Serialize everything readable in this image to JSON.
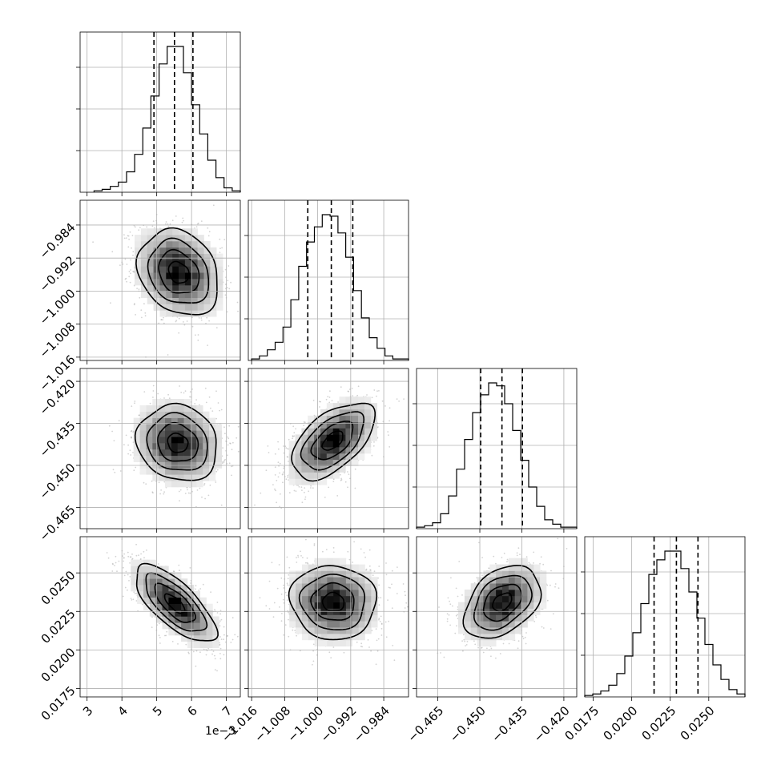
{
  "chart_data": {
    "type": "corner",
    "grid": true,
    "parameters": [
      {
        "index": 0,
        "axis_range": [
          0.0028,
          0.0074
        ],
        "ticks": [
          3,
          4,
          5,
          6,
          7
        ],
        "tick_scale": 0.001,
        "offset_label": "1e−3",
        "quantiles": [
          0.00492,
          0.00551,
          0.00604
        ],
        "hist_counts": [
          1,
          2,
          4,
          7,
          14,
          26,
          44,
          66,
          88,
          100,
          100,
          82,
          60,
          40,
          22,
          10,
          3,
          1
        ],
        "hist_range": [
          0.0032,
          0.0074
        ]
      },
      {
        "index": 1,
        "axis_range": [
          -1.0168,
          -0.978
        ],
        "ticks": [
          -1.016,
          -1.008,
          -1.0,
          -0.992,
          -0.984
        ],
        "tick_scale": 1,
        "quantiles": [
          -1.0024,
          -0.9967,
          -0.9915
        ],
        "hist_counts": [
          1,
          3,
          7,
          12,
          22,
          40,
          62,
          78,
          88,
          96,
          95,
          84,
          68,
          46,
          28,
          15,
          8,
          3,
          1,
          1
        ],
        "hist_range": [
          -1.016,
          -0.978
        ]
      },
      {
        "index": 2,
        "axis_range": [
          -0.4726,
          -0.4154
        ],
        "ticks": [
          -0.465,
          -0.45,
          -0.435,
          -0.42
        ],
        "tick_scale": 1,
        "quantiles": [
          -0.4497,
          -0.4421,
          -0.4348
        ],
        "hist_counts": [
          1,
          2,
          4,
          10,
          22,
          40,
          60,
          78,
          90,
          98,
          96,
          84,
          66,
          46,
          28,
          15,
          6,
          3,
          1,
          1
        ],
        "hist_range": [
          -0.4726,
          -0.4154
        ]
      },
      {
        "index": 3,
        "axis_range": [
          0.01695,
          0.02735
        ],
        "ticks": [
          0.0175,
          0.02,
          0.0225,
          0.025
        ],
        "tick_scale": 1,
        "quantiles": [
          0.02145,
          0.0229,
          0.0243
        ],
        "hist_counts": [
          1,
          2,
          4,
          8,
          16,
          28,
          44,
          64,
          84,
          94,
          100,
          100,
          88,
          72,
          54,
          36,
          22,
          12,
          5,
          2
        ],
        "hist_range": [
          0.01695,
          0.02735
        ]
      }
    ],
    "pairs": [
      {
        "x": 0,
        "y": 1,
        "center": [
          0.00563,
          -0.9955
        ],
        "sd": [
          0.00058,
          0.0052
        ],
        "rho": -0.22
      },
      {
        "x": 0,
        "y": 2,
        "center": [
          0.0056,
          -0.442
        ],
        "sd": [
          0.00058,
          0.0068
        ],
        "rho": -0.12
      },
      {
        "x": 1,
        "y": 2,
        "center": [
          -0.9963,
          -0.4412
        ],
        "sd": [
          0.005,
          0.0068
        ],
        "rho": 0.55
      },
      {
        "x": 0,
        "y": 3,
        "center": [
          0.00552,
          0.023
        ],
        "sd": [
          0.00058,
          0.00125
        ],
        "rho": -0.72
      },
      {
        "x": 1,
        "y": 3,
        "center": [
          -0.9962,
          0.0231
        ],
        "sd": [
          0.0052,
          0.0012
        ],
        "rho": -0.05
      },
      {
        "x": 2,
        "y": 3,
        "center": [
          -0.442,
          0.0231
        ],
        "sd": [
          0.0068,
          0.00118
        ],
        "rho": 0.38
      }
    ],
    "contour_sigma_levels": [
      0.5,
      1.0,
      1.5,
      2.0
    ],
    "tick_labels": {
      "p0": [
        "3",
        "4",
        "5",
        "6",
        "7"
      ],
      "p1": [
        "−1.016",
        "−1.008",
        "−1.000",
        "−0.992",
        "−0.984"
      ],
      "p2": [
        "−0.465",
        "−0.450",
        "−0.435",
        "−0.420"
      ],
      "p3": [
        "0.0175",
        "0.0200",
        "0.0225",
        "0.0250"
      ]
    }
  }
}
